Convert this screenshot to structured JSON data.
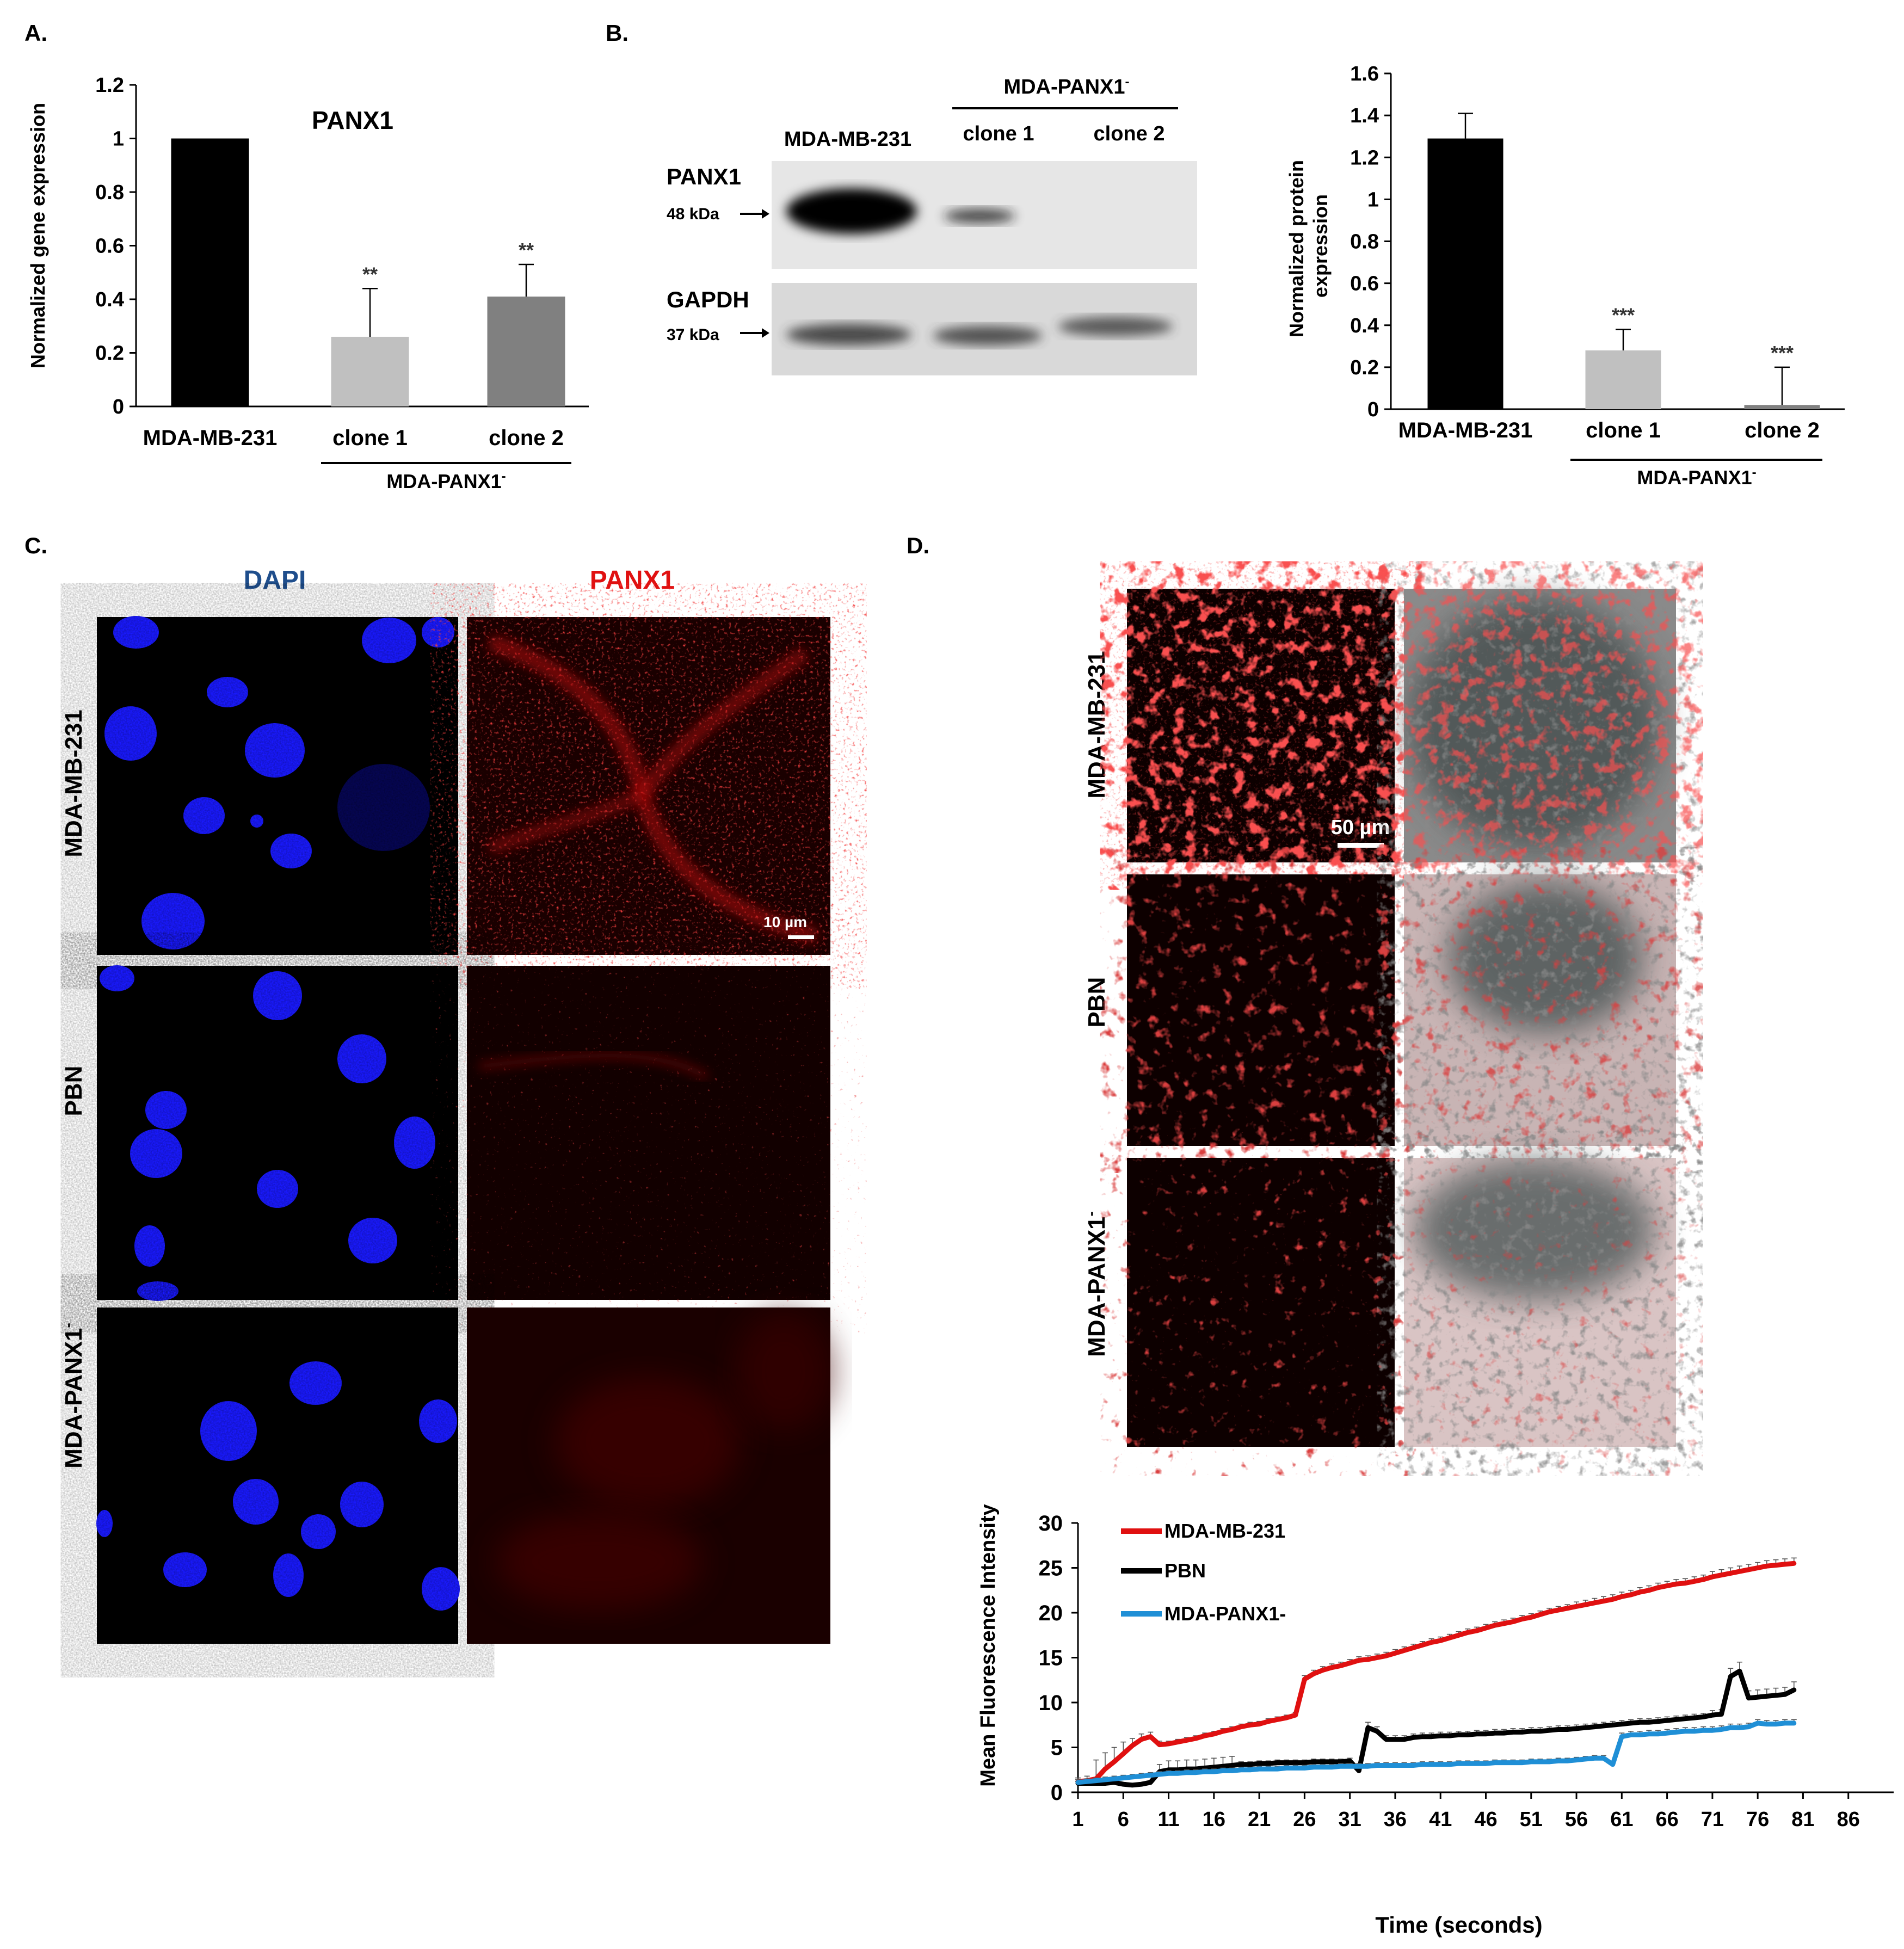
{
  "panels": {
    "a": "A.",
    "b": "B.",
    "c": "C.",
    "d": "D."
  },
  "colors": {
    "black_bar": "#000000",
    "light_bar": "#c0c0c0",
    "dark_bar": "#808080",
    "red": "#e01010",
    "blue": "#1f8fd6",
    "dapi_label": "#1f4e8c",
    "panx1_label": "#e01010"
  },
  "panelA": {
    "chart_data": {
      "type": "bar",
      "title": "PANX1",
      "ylabel": "Normalized gene expression",
      "categories": [
        "MDA-MB-231",
        "clone 1",
        "clone 2"
      ],
      "values": [
        1.0,
        0.26,
        0.41
      ],
      "errors": [
        0,
        0.18,
        0.12
      ],
      "significance": [
        "",
        "**",
        "**"
      ],
      "ylim": [
        0,
        1.2
      ],
      "yticks": [
        "0",
        "0.2",
        "0.4",
        "0.6",
        "0.8",
        "1",
        "1.2"
      ],
      "group_label": "MDA-PANX1",
      "group_label_sup": "-"
    }
  },
  "panelB": {
    "blot": {
      "header_group": "MDA-PANX1",
      "header_group_sup": "-",
      "lane_labels": [
        "MDA-MB-231",
        "clone 1",
        "clone 2"
      ],
      "bands": [
        {
          "protein": "PANX1",
          "size": "48 kDa"
        },
        {
          "protein": "GAPDH",
          "size": "37 kDa"
        }
      ]
    },
    "chart_data": {
      "type": "bar",
      "ylabel": "Normalized protein expression",
      "ylabel_lines": [
        "Normalized protein",
        "expression"
      ],
      "categories": [
        "MDA-MB-231",
        "clone 1",
        "clone 2"
      ],
      "values": [
        1.29,
        0.28,
        0.02
      ],
      "errors": [
        0.12,
        0.1,
        0.18
      ],
      "significance": [
        "",
        "***",
        "***"
      ],
      "ylim": [
        0,
        1.6
      ],
      "yticks": [
        "0",
        "0.2",
        "0.4",
        "0.6",
        "0.8",
        "1",
        "1.2",
        "1.4",
        "1.6"
      ],
      "group_label": "MDA-PANX1",
      "group_label_sup": "-"
    }
  },
  "panelC": {
    "col_labels": [
      "DAPI",
      "PANX1"
    ],
    "row_labels": [
      "MDA-MB-231",
      "PBN",
      "MDA-PANX1"
    ],
    "row_label_sup": "-",
    "scale_bar": "10 µm"
  },
  "panelD": {
    "row_labels": [
      "MDA-MB-231",
      "PBN",
      "MDA-PANX1"
    ],
    "row_label_sup": "-",
    "scale_bar": "50 µm",
    "chart_data": {
      "type": "line",
      "xlabel": "Time (seconds)",
      "ylabel": "Mean Fluorescence Intensity",
      "xlim": [
        1,
        91
      ],
      "ylim": [
        0,
        30
      ],
      "xticks": [
        1,
        6,
        11,
        16,
        21,
        26,
        31,
        36,
        41,
        46,
        51,
        56,
        61,
        66,
        71,
        76,
        81,
        86
      ],
      "yticks": [
        0,
        5,
        10,
        15,
        20,
        25,
        30
      ],
      "legend": "top-left",
      "series": [
        {
          "name": "MDA-MB-231",
          "color": "#e01010",
          "x": [
            1,
            2,
            3,
            4,
            5,
            6,
            7,
            8,
            9,
            10,
            11,
            12,
            13,
            14,
            15,
            16,
            17,
            18,
            19,
            20,
            21,
            22,
            23,
            24,
            25,
            26,
            27,
            28,
            29,
            30,
            31,
            32,
            33,
            34,
            35,
            36,
            37,
            38,
            39,
            40,
            41,
            42,
            43,
            44,
            45,
            46,
            47,
            48,
            49,
            50,
            51,
            52,
            53,
            54,
            55,
            56,
            57,
            58,
            59,
            60,
            61,
            62,
            63,
            64,
            65,
            66,
            67,
            68,
            69,
            70,
            71,
            72,
            73,
            74,
            75,
            76,
            77,
            78,
            79,
            80
          ],
          "y": [
            1.2,
            1.3,
            1.5,
            2.6,
            3.4,
            4.3,
            5.2,
            5.9,
            6.2,
            5.3,
            5.4,
            5.6,
            5.8,
            6.0,
            6.3,
            6.5,
            6.8,
            7.0,
            7.3,
            7.5,
            7.6,
            7.9,
            8.1,
            8.3,
            8.6,
            12.6,
            13.2,
            13.6,
            13.9,
            14.1,
            14.4,
            14.7,
            14.8,
            15.0,
            15.2,
            15.5,
            15.8,
            16.1,
            16.4,
            16.7,
            16.9,
            17.2,
            17.5,
            17.8,
            18.0,
            18.3,
            18.6,
            18.8,
            19.0,
            19.3,
            19.5,
            19.8,
            20.1,
            20.3,
            20.5,
            20.7,
            20.9,
            21.1,
            21.3,
            21.5,
            21.8,
            22.0,
            22.3,
            22.5,
            22.8,
            23.0,
            23.2,
            23.3,
            23.5,
            23.7,
            24.0,
            24.2,
            24.4,
            24.6,
            24.8,
            25.0,
            25.2,
            25.3,
            25.4,
            25.5
          ],
          "err": [
            0.4,
            0.5,
            2.1,
            1.8,
            1.6,
            1.3,
            0.8,
            0.6,
            0.5,
            0.4,
            0.3,
            0.3,
            0.3,
            0.3,
            0.3,
            0.3,
            0.3,
            0.3,
            0.3,
            0.3,
            0.3,
            0.3,
            0.3,
            0.3,
            0.3,
            0.4,
            0.4,
            0.4,
            0.4,
            0.4,
            0.4,
            0.4,
            0.4,
            0.4,
            0.4,
            0.4,
            0.4,
            0.4,
            0.4,
            0.4,
            0.4,
            0.4,
            0.4,
            0.4,
            0.4,
            0.4,
            0.4,
            0.4,
            0.4,
            0.4,
            0.4,
            0.4,
            0.4,
            0.4,
            0.4,
            0.5,
            0.5,
            0.5,
            0.5,
            0.5,
            0.5,
            0.5,
            0.5,
            0.5,
            0.5,
            0.5,
            0.5,
            0.5,
            0.5,
            0.5,
            0.6,
            0.6,
            0.6,
            0.6,
            0.6,
            0.6,
            0.6,
            0.6,
            0.6,
            0.6
          ]
        },
        {
          "name": "PBN",
          "color": "#000000",
          "x": [
            1,
            2,
            3,
            4,
            5,
            6,
            7,
            8,
            9,
            10,
            11,
            12,
            13,
            14,
            15,
            16,
            17,
            18,
            19,
            20,
            21,
            22,
            23,
            24,
            25,
            26,
            27,
            28,
            29,
            30,
            31,
            32,
            33,
            34,
            35,
            36,
            37,
            38,
            39,
            40,
            41,
            42,
            43,
            44,
            45,
            46,
            47,
            48,
            49,
            50,
            51,
            52,
            53,
            54,
            55,
            56,
            57,
            58,
            59,
            60,
            61,
            62,
            63,
            64,
            65,
            66,
            67,
            68,
            69,
            70,
            71,
            72,
            73,
            74,
            75,
            76,
            77,
            78,
            79,
            80
          ],
          "y": [
            1.0,
            1.0,
            1.0,
            1.0,
            1.1,
            0.9,
            0.8,
            0.9,
            1.1,
            2.3,
            2.5,
            2.5,
            2.6,
            2.6,
            2.7,
            2.8,
            2.9,
            3.0,
            3.1,
            3.1,
            3.2,
            3.2,
            3.3,
            3.3,
            3.3,
            3.3,
            3.4,
            3.4,
            3.4,
            3.4,
            3.5,
            2.4,
            7.2,
            6.8,
            5.9,
            5.9,
            5.9,
            6.1,
            6.2,
            6.2,
            6.3,
            6.3,
            6.4,
            6.4,
            6.5,
            6.5,
            6.6,
            6.6,
            6.7,
            6.7,
            6.8,
            6.8,
            6.9,
            7.0,
            7.0,
            7.1,
            7.2,
            7.3,
            7.4,
            7.5,
            7.6,
            7.7,
            7.8,
            7.8,
            7.9,
            8.0,
            8.1,
            8.2,
            8.3,
            8.4,
            8.6,
            8.7,
            12.9,
            13.5,
            10.5,
            10.6,
            10.7,
            10.8,
            10.9,
            11.4
          ],
          "err": [
            0.2,
            0.2,
            0.2,
            0.2,
            0.2,
            0.2,
            0.2,
            0.2,
            0.2,
            0.8,
            1.0,
            1.0,
            1.0,
            1.0,
            1.0,
            1.0,
            1.0,
            1.0,
            0.3,
            0.3,
            0.3,
            0.3,
            0.3,
            0.3,
            0.3,
            0.3,
            0.3,
            0.3,
            0.3,
            0.3,
            0.3,
            0.3,
            0.6,
            0.5,
            0.4,
            0.4,
            0.4,
            0.4,
            0.4,
            0.4,
            0.4,
            0.4,
            0.4,
            0.4,
            0.4,
            0.4,
            0.4,
            0.4,
            0.4,
            0.4,
            0.4,
            0.4,
            0.4,
            0.4,
            0.4,
            0.4,
            0.4,
            0.4,
            0.4,
            0.4,
            0.4,
            0.4,
            0.4,
            0.4,
            0.4,
            0.4,
            0.4,
            0.4,
            0.4,
            0.4,
            0.5,
            0.5,
            0.9,
            1.0,
            0.8,
            0.8,
            0.8,
            0.8,
            0.8,
            0.9
          ]
        },
        {
          "name": "MDA-PANX1-",
          "color": "#1f8fd6",
          "x": [
            1,
            2,
            3,
            4,
            5,
            6,
            7,
            8,
            9,
            10,
            11,
            12,
            13,
            14,
            15,
            16,
            17,
            18,
            19,
            20,
            21,
            22,
            23,
            24,
            25,
            26,
            27,
            28,
            29,
            30,
            31,
            32,
            33,
            34,
            35,
            36,
            37,
            38,
            39,
            40,
            41,
            42,
            43,
            44,
            45,
            46,
            47,
            48,
            49,
            50,
            51,
            52,
            53,
            54,
            55,
            56,
            57,
            58,
            59,
            60,
            61,
            62,
            63,
            64,
            65,
            66,
            67,
            68,
            69,
            70,
            71,
            72,
            73,
            74,
            75,
            76,
            77,
            78,
            79,
            80
          ],
          "y": [
            1.1,
            1.2,
            1.3,
            1.4,
            1.5,
            1.6,
            1.7,
            1.8,
            1.9,
            2.0,
            2.1,
            2.1,
            2.2,
            2.2,
            2.3,
            2.3,
            2.4,
            2.4,
            2.5,
            2.5,
            2.6,
            2.6,
            2.6,
            2.7,
            2.7,
            2.7,
            2.8,
            2.8,
            2.8,
            2.9,
            2.9,
            2.9,
            2.9,
            3.0,
            3.0,
            3.0,
            3.0,
            3.0,
            3.1,
            3.1,
            3.1,
            3.1,
            3.2,
            3.2,
            3.2,
            3.2,
            3.3,
            3.3,
            3.3,
            3.3,
            3.4,
            3.4,
            3.4,
            3.5,
            3.5,
            3.6,
            3.7,
            3.8,
            3.8,
            3.1,
            6.2,
            6.4,
            6.4,
            6.5,
            6.5,
            6.6,
            6.7,
            6.8,
            6.8,
            6.9,
            6.9,
            7.0,
            7.2,
            7.2,
            7.3,
            7.7,
            7.6,
            7.6,
            7.7,
            7.7
          ],
          "err": [
            0.3,
            0.3,
            0.3,
            0.3,
            0.3,
            0.3,
            0.3,
            0.3,
            0.3,
            0.3,
            0.3,
            0.3,
            0.3,
            0.3,
            0.3,
            0.3,
            0.3,
            0.3,
            0.3,
            0.3,
            0.3,
            0.3,
            0.3,
            0.3,
            0.3,
            0.3,
            0.3,
            0.3,
            0.3,
            0.3,
            0.3,
            0.3,
            0.3,
            0.3,
            0.3,
            0.3,
            0.3,
            0.3,
            0.3,
            0.3,
            0.3,
            0.3,
            0.3,
            0.3,
            0.3,
            0.3,
            0.3,
            0.3,
            0.3,
            0.3,
            0.3,
            0.3,
            0.3,
            0.3,
            0.3,
            0.3,
            0.3,
            0.3,
            0.3,
            0.3,
            0.4,
            0.4,
            0.4,
            0.4,
            0.4,
            0.4,
            0.4,
            0.4,
            0.4,
            0.4,
            0.4,
            0.4,
            0.4,
            0.4,
            0.4,
            0.4,
            0.4,
            0.4,
            0.4,
            0.4
          ]
        }
      ]
    }
  }
}
